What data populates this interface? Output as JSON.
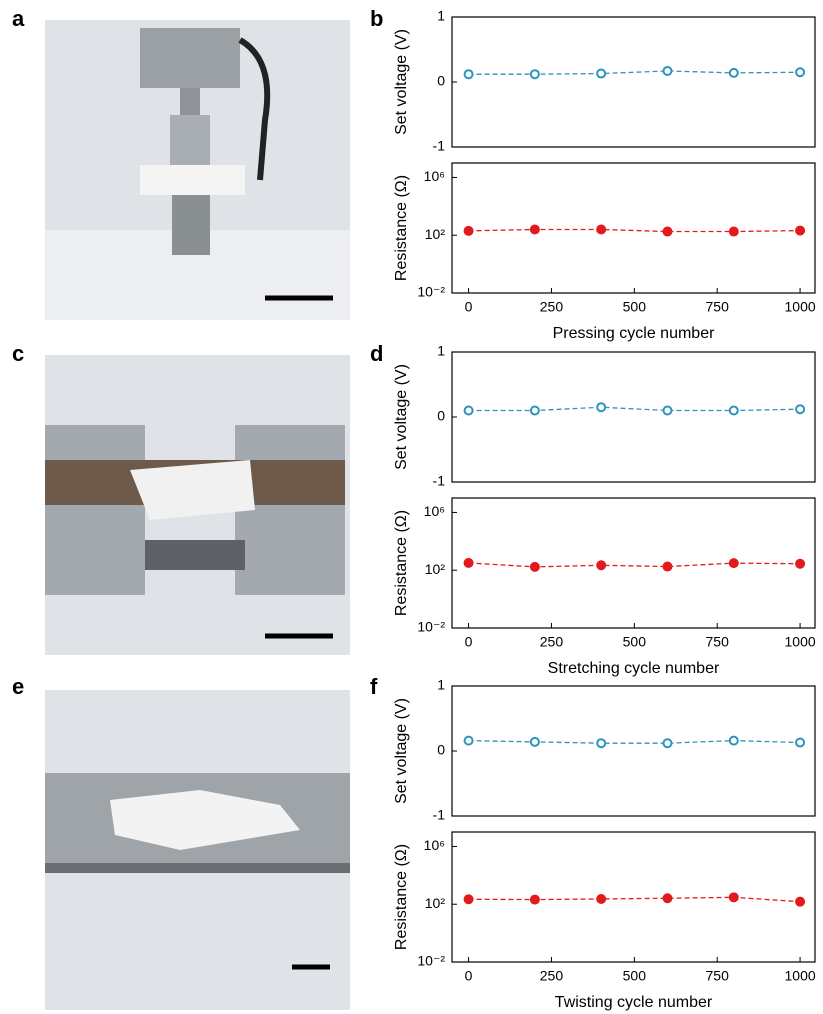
{
  "panel_labels": [
    "a",
    "b",
    "c",
    "d",
    "e",
    "f"
  ],
  "chart_data": [
    {
      "type": "line",
      "ylabel": "Set voltage (V)",
      "x": [
        0,
        200,
        400,
        600,
        800,
        1000
      ],
      "xlim": [
        -50,
        1045
      ],
      "ylim": [
        -1,
        1
      ],
      "yticks": [
        -1,
        0,
        1
      ],
      "marker": "open",
      "series": [
        {
          "color": "#2e93b8",
          "values": [
            0.12,
            0.12,
            0.13,
            0.17,
            0.14,
            0.15
          ]
        }
      ]
    },
    {
      "type": "line",
      "ylabel": "Resistance (Ω)",
      "xlabel": "Pressing cycle number",
      "x": [
        0,
        200,
        400,
        600,
        800,
        1000
      ],
      "xlim": [
        -50,
        1045
      ],
      "xticks": [
        0,
        250,
        500,
        750,
        1000
      ],
      "log_scale": true,
      "ylim": [
        0.01,
        10000000
      ],
      "yticks": [
        {
          "value": 0.01,
          "label": "10⁻²"
        },
        {
          "value": 100,
          "label": "10²"
        },
        {
          "value": 1000000,
          "label": "10⁶"
        }
      ],
      "marker": "filled",
      "series": [
        {
          "color": "#e31a1c",
          "values": [
            200,
            250,
            250,
            180,
            180,
            210
          ]
        }
      ]
    },
    {
      "type": "line",
      "ylabel": "Set voltage (V)",
      "x": [
        0,
        200,
        400,
        600,
        800,
        1000
      ],
      "xlim": [
        -50,
        1045
      ],
      "ylim": [
        -1,
        1
      ],
      "yticks": [
        -1,
        0,
        1
      ],
      "marker": "open",
      "series": [
        {
          "color": "#2e93b8",
          "values": [
            0.1,
            0.1,
            0.15,
            0.1,
            0.1,
            0.12
          ]
        }
      ]
    },
    {
      "type": "line",
      "ylabel": "Resistance (Ω)",
      "xlabel": "Stretching cycle number",
      "x": [
        0,
        200,
        400,
        600,
        800,
        1000
      ],
      "xlim": [
        -50,
        1045
      ],
      "xticks": [
        0,
        250,
        500,
        750,
        1000
      ],
      "log_scale": true,
      "ylim": [
        0.01,
        10000000
      ],
      "yticks": [
        {
          "value": 0.01,
          "label": "10⁻²"
        },
        {
          "value": 100,
          "label": "10²"
        },
        {
          "value": 1000000,
          "label": "10⁶"
        }
      ],
      "marker": "filled",
      "series": [
        {
          "color": "#e31a1c",
          "values": [
            320,
            170,
            220,
            180,
            310,
            280
          ]
        }
      ]
    },
    {
      "type": "line",
      "ylabel": "Set voltage (V)",
      "x": [
        0,
        200,
        400,
        600,
        800,
        1000
      ],
      "xlim": [
        -50,
        1045
      ],
      "ylim": [
        -1,
        1
      ],
      "yticks": [
        -1,
        0,
        1
      ],
      "marker": "open",
      "series": [
        {
          "color": "#2e93b8",
          "values": [
            0.16,
            0.14,
            0.12,
            0.12,
            0.16,
            0.13
          ]
        }
      ]
    },
    {
      "type": "line",
      "ylabel": "Resistance (Ω)",
      "xlabel": "Twisting cycle number",
      "x": [
        0,
        200,
        400,
        600,
        800,
        1000
      ],
      "xlim": [
        -50,
        1045
      ],
      "xticks": [
        0,
        250,
        500,
        750,
        1000
      ],
      "log_scale": true,
      "ylim": [
        0.01,
        10000000
      ],
      "yticks": [
        {
          "value": 0.01,
          "label": "10⁻²"
        },
        {
          "value": 100,
          "label": "10²"
        },
        {
          "value": 1000000,
          "label": "10⁶"
        }
      ],
      "marker": "filled",
      "series": [
        {
          "color": "#e31a1c",
          "values": [
            220,
            210,
            230,
            260,
            300,
            150
          ]
        }
      ]
    }
  ]
}
